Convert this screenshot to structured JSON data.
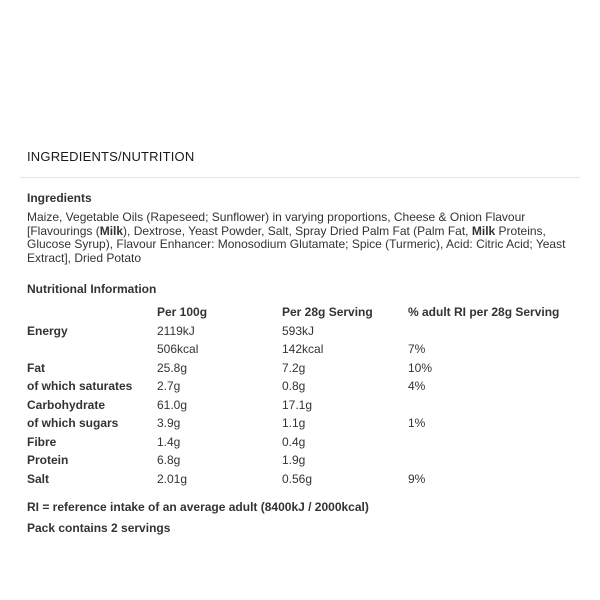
{
  "section": {
    "title": "INGREDIENTS/NUTRITION"
  },
  "ingredients": {
    "heading": "Ingredients",
    "segments": [
      {
        "text": "Maize, Vegetable Oils (Rapeseed; Sunflower) in varying proportions, Cheese & Onion Flavour [Flavourings (",
        "bold": false
      },
      {
        "text": "Milk",
        "bold": true
      },
      {
        "text": "), Dextrose, Yeast Powder, Salt, Spray Dried Palm Fat (Palm Fat, ",
        "bold": false
      },
      {
        "text": "Milk",
        "bold": true
      },
      {
        "text": " Proteins, Glucose Syrup), Flavour Enhancer: Monosodium Glutamate; Spice (Turmeric), Acid: Citric Acid; Yeast Extract], Dried Potato",
        "bold": false
      }
    ]
  },
  "nutrition": {
    "heading": "Nutritional Information",
    "columns": [
      "",
      "Per 100g",
      "Per 28g Serving",
      "% adult RI per 28g Serving"
    ],
    "rows": [
      {
        "label": "Energy",
        "per_100g": "2119kJ",
        "per_serving": "593kJ",
        "ri": ""
      },
      {
        "label": "",
        "per_100g": "506kcal",
        "per_serving": "142kcal",
        "ri": "7%"
      },
      {
        "label": "Fat",
        "per_100g": "25.8g",
        "per_serving": "7.2g",
        "ri": "10%"
      },
      {
        "label": "of which saturates",
        "per_100g": "2.7g",
        "per_serving": "0.8g",
        "ri": "4%"
      },
      {
        "label": "Carbohydrate",
        "per_100g": "61.0g",
        "per_serving": "17.1g",
        "ri": ""
      },
      {
        "label": "of which sugars",
        "per_100g": "3.9g",
        "per_serving": "1.1g",
        "ri": "1%"
      },
      {
        "label": "Fibre",
        "per_100g": "1.4g",
        "per_serving": "0.4g",
        "ri": ""
      },
      {
        "label": "Protein",
        "per_100g": "6.8g",
        "per_serving": "1.9g",
        "ri": ""
      },
      {
        "label": "Salt",
        "per_100g": "2.01g",
        "per_serving": "0.56g",
        "ri": "9%"
      }
    ],
    "footnotes": [
      "RI = reference intake of an average adult (8400kJ / 2000kcal)",
      "Pack contains 2 servings"
    ]
  }
}
